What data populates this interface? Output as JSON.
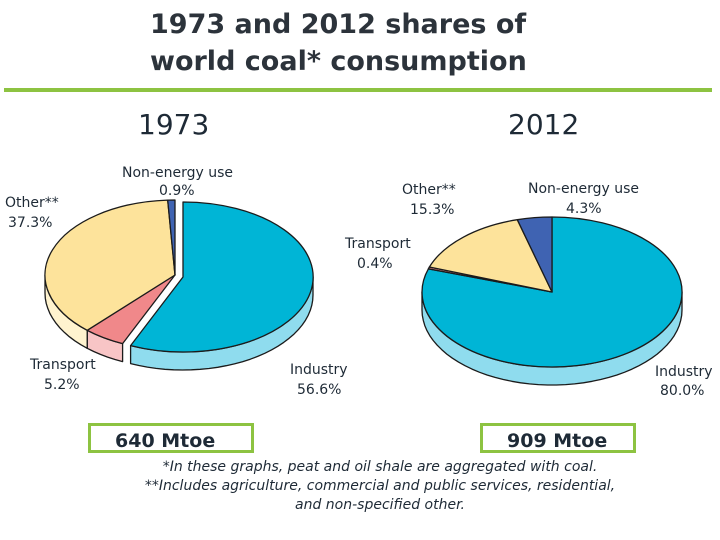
{
  "title": {
    "line1": "1973 and 2012 shares of",
    "line2": "world coal* consumption"
  },
  "chart_data": [
    {
      "type": "pie",
      "title": "1973",
      "total": "640 Mtoe",
      "slices": [
        {
          "key": "industry",
          "label": "Industry",
          "value": 56.6,
          "value_label": "56.6%",
          "top": "#00b5d6",
          "side": "#8fdcee",
          "exploded": true
        },
        {
          "key": "transport",
          "label": "Transport",
          "value": 5.2,
          "value_label": "5.2%",
          "top": "#f0888a",
          "side": "#f8c5c6",
          "exploded": false
        },
        {
          "key": "other",
          "label": "Other**",
          "value": 37.3,
          "value_label": "37.3%",
          "top": "#fde39b",
          "side": "#fff3cf",
          "exploded": false
        },
        {
          "key": "nonenergy",
          "label": "Non-energy use",
          "value": 0.9,
          "value_label": "0.9%",
          "top": "#3f63b2",
          "side": "#7f96cc",
          "exploded": false
        }
      ]
    },
    {
      "type": "pie",
      "title": "2012",
      "total": "909 Mtoe",
      "slices": [
        {
          "key": "industry",
          "label": "Industry",
          "value": 80.0,
          "value_label": "80.0%",
          "top": "#00b5d6",
          "side": "#8fdcee",
          "exploded": false
        },
        {
          "key": "transport",
          "label": "Transport",
          "value": 0.4,
          "value_label": "0.4%",
          "top": "#f0888a",
          "side": "#f8c5c6",
          "exploded": false
        },
        {
          "key": "other",
          "label": "Other**",
          "value": 15.3,
          "value_label": "15.3%",
          "top": "#fde39b",
          "side": "#fff3cf",
          "exploded": false
        },
        {
          "key": "nonenergy",
          "label": "Non-energy use",
          "value": 4.3,
          "value_label": "4.3%",
          "top": "#3f63b2",
          "side": "#7f96cc",
          "exploded": false
        }
      ]
    }
  ],
  "footnotes": {
    "line1": "*In these graphs, peat and oil shale are aggregated with coal.",
    "line2": "**Includes agriculture, commercial and public services, residential,",
    "line3": "and non-specified other."
  },
  "colors": {
    "accent": "#8dc341"
  }
}
